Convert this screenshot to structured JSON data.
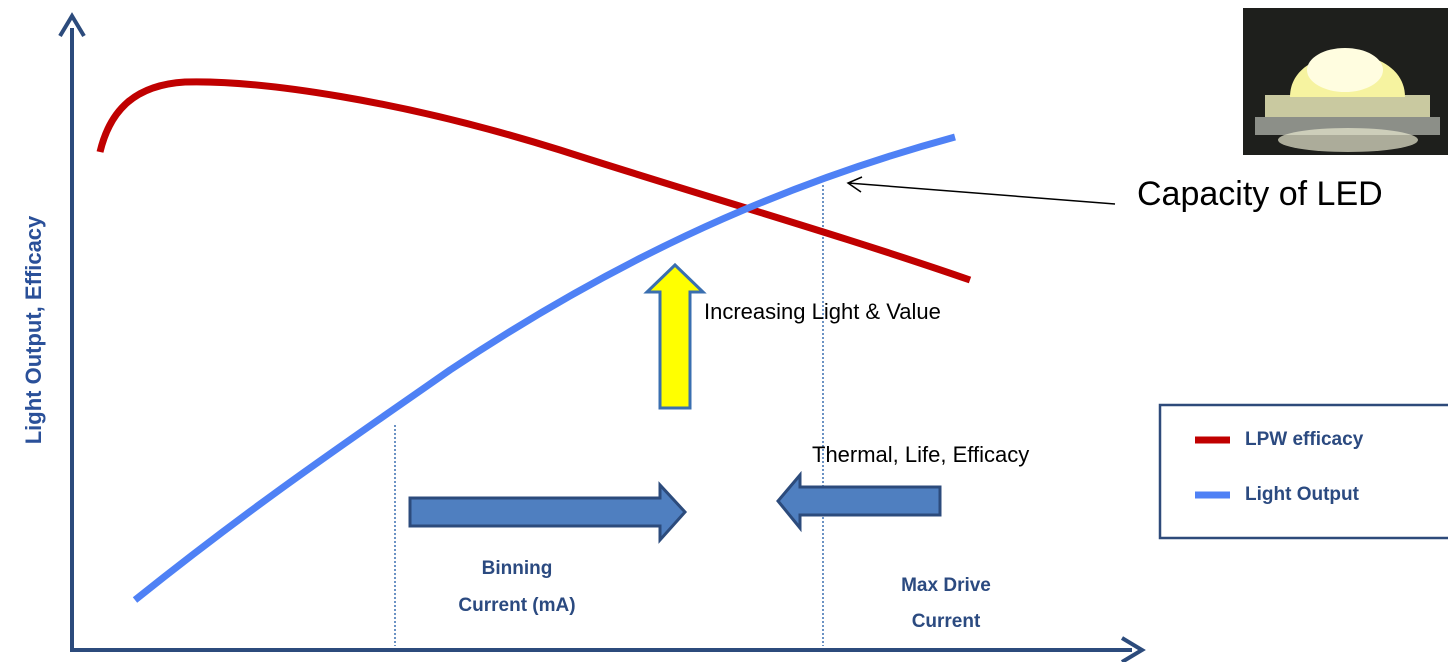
{
  "axis_label": "Light Output, Efficacy",
  "annotations": {
    "capacity": "Capacity of LED",
    "increasing": "Increasing Light & Value",
    "thermal": "Thermal, Life, Efficacy",
    "binning": [
      "Binning",
      "Current (mA)"
    ],
    "max_drive": [
      "Max Drive",
      "Current"
    ]
  },
  "legend": {
    "items": [
      {
        "name": "LPW efficacy",
        "color": "#c00000"
      },
      {
        "name": "Light Output",
        "color": "#4f81f5"
      }
    ]
  }
}
